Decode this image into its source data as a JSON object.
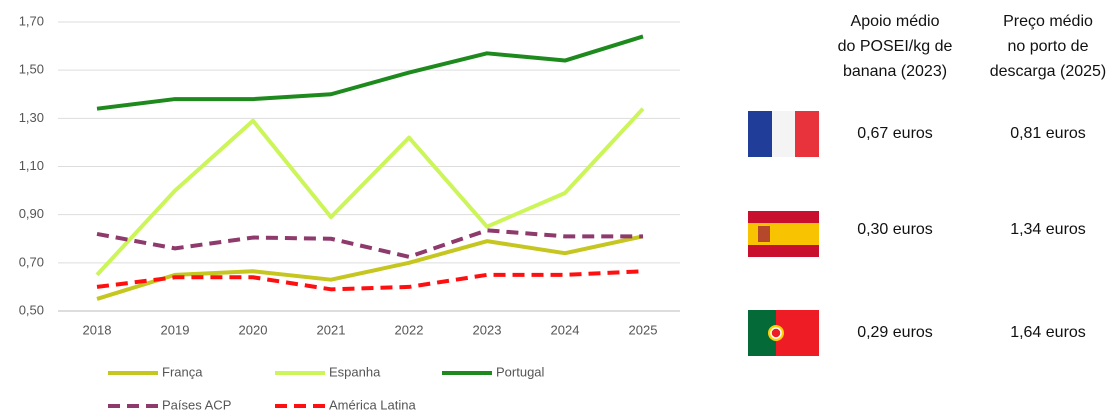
{
  "chart_data": {
    "type": "line",
    "categories": [
      "2018",
      "2019",
      "2020",
      "2021",
      "2022",
      "2023",
      "2024",
      "2025"
    ],
    "series": [
      {
        "name": "França",
        "color": "#c6c620",
        "dash": false,
        "values": [
          0.55,
          0.65,
          0.665,
          0.63,
          0.7,
          0.79,
          0.74,
          0.81
        ]
      },
      {
        "name": "Espanha",
        "color": "#ccf55a",
        "dash": false,
        "values": [
          0.65,
          1.0,
          1.29,
          0.89,
          1.22,
          0.85,
          0.99,
          1.34
        ]
      },
      {
        "name": "Portugal",
        "color": "#1e8a1e",
        "dash": false,
        "values": [
          1.34,
          1.38,
          1.38,
          1.4,
          1.49,
          1.57,
          1.54,
          1.64
        ]
      },
      {
        "name": "Países ACP",
        "color": "#8e3a6c",
        "dash": true,
        "values": [
          0.82,
          0.76,
          0.805,
          0.8,
          0.725,
          0.835,
          0.81,
          0.81
        ]
      },
      {
        "name": "América Latina",
        "color": "#ff1010",
        "dash": true,
        "values": [
          0.6,
          0.64,
          0.64,
          0.59,
          0.6,
          0.65,
          0.65,
          0.665
        ]
      }
    ],
    "ylim": [
      0.5,
      1.7
    ],
    "yticks": [
      {
        "value": 0.5,
        "label": "0,50"
      },
      {
        "value": 0.7,
        "label": "0,70"
      },
      {
        "value": 0.9,
        "label": "0,90"
      },
      {
        "value": 1.1,
        "label": "1,10"
      },
      {
        "value": 1.3,
        "label": "1,30"
      },
      {
        "value": 1.5,
        "label": "1,50"
      },
      {
        "value": 1.7,
        "label": "1,70"
      }
    ],
    "grid": true
  },
  "table": {
    "headers": [
      [
        "Apoio médio",
        "do POSEI/kg de",
        "banana (2023)"
      ],
      [
        "Preço médio",
        "no porto de",
        "descarga (2025)"
      ]
    ],
    "rows": [
      [
        "0,67 euros",
        "0,81 euros"
      ],
      [
        "0,30 euros",
        "1,34 euros"
      ],
      [
        "0,29 euros",
        "1,64 euros"
      ]
    ]
  }
}
